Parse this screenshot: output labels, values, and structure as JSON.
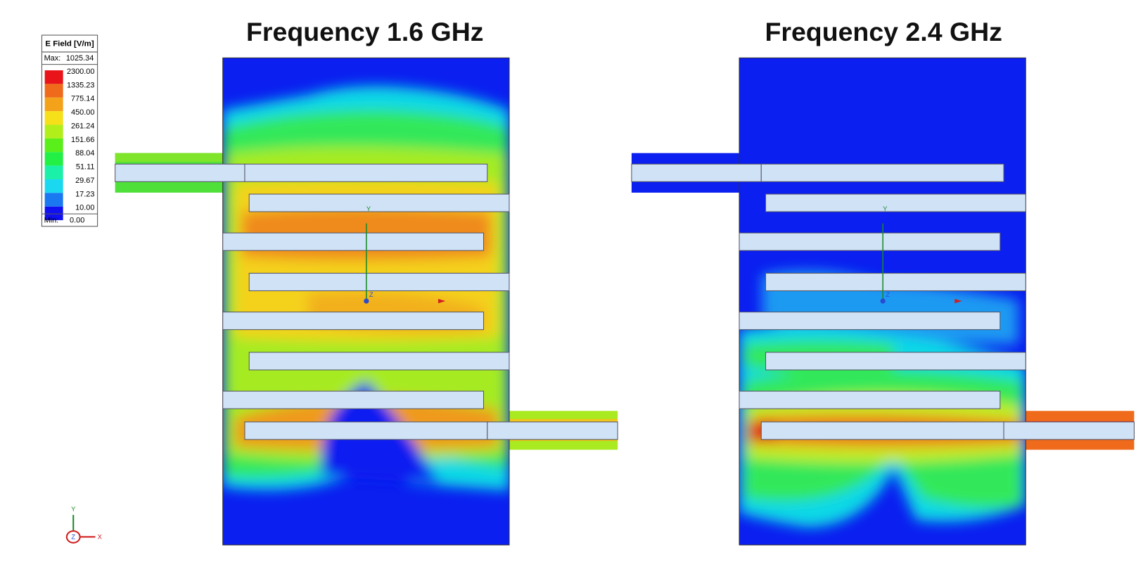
{
  "plots": [
    {
      "title": "Frequency 1.6 GHz"
    },
    {
      "title": "Frequency 2.4 GHz"
    }
  ],
  "legend": {
    "title": "E Field [V/m]",
    "max_label": "Max:",
    "max_value": "1025.34",
    "levels": [
      "2300.00",
      "1335.23",
      "775.14",
      "450.00",
      "261.24",
      "151.66",
      "88.04",
      "51.11",
      "29.67",
      "17.23",
      "10.00"
    ],
    "min_label": "Min:",
    "min_value": "0.00"
  },
  "triad": {
    "y": "Y",
    "z": "Z",
    "x": "X"
  }
}
